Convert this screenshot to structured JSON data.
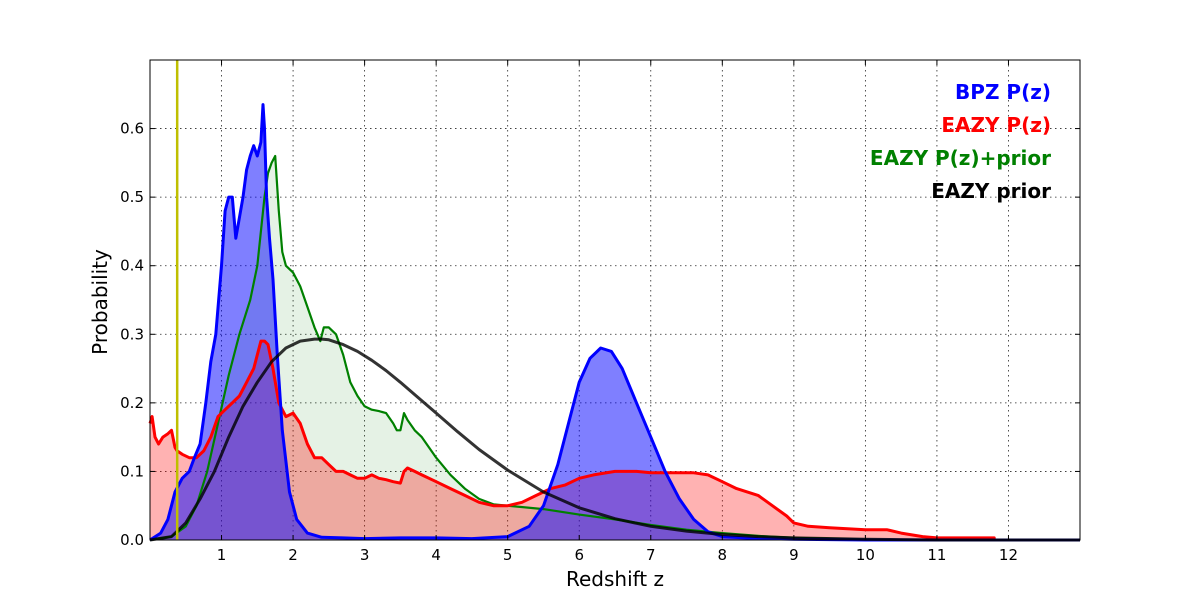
{
  "chart_data": {
    "type": "area",
    "xlabel": "Redshift z",
    "ylabel": "Probability",
    "xlim": [
      0,
      13
    ],
    "ylim": [
      0,
      0.7
    ],
    "xticks": [
      1,
      2,
      3,
      4,
      5,
      6,
      7,
      8,
      9,
      10,
      11,
      12
    ],
    "yticks": [
      0.0,
      0.1,
      0.2,
      0.3,
      0.4,
      0.5,
      0.6
    ],
    "ytick_labels": [
      "0.0",
      "0.1",
      "0.2",
      "0.3",
      "0.4",
      "0.5",
      "0.6"
    ],
    "grid": true,
    "legend_position": "top-right",
    "vline": {
      "x": 0.38,
      "color": "#bfbf00"
    },
    "series": [
      {
        "name": "BPZ P(z)",
        "color": "#0000ff",
        "fill": "#0000ff",
        "fill_opacity": 0.5,
        "x": [
          0,
          0.15,
          0.25,
          0.35,
          0.45,
          0.55,
          0.62,
          0.7,
          0.78,
          0.85,
          0.92,
          1.0,
          1.05,
          1.1,
          1.15,
          1.2,
          1.25,
          1.3,
          1.35,
          1.4,
          1.45,
          1.5,
          1.55,
          1.58,
          1.6,
          1.63,
          1.67,
          1.72,
          1.78,
          1.85,
          1.95,
          2.05,
          2.2,
          2.4,
          2.7,
          3.0,
          3.5,
          4.0,
          4.5,
          5.0,
          5.3,
          5.5,
          5.7,
          5.85,
          6.0,
          6.15,
          6.3,
          6.45,
          6.6,
          6.8,
          7.0,
          7.2,
          7.4,
          7.6,
          7.8,
          8.0,
          8.5,
          9.0,
          10.0,
          13.0
        ],
        "y": [
          0.0,
          0.01,
          0.03,
          0.07,
          0.09,
          0.1,
          0.12,
          0.14,
          0.2,
          0.26,
          0.3,
          0.4,
          0.48,
          0.5,
          0.5,
          0.44,
          0.47,
          0.5,
          0.54,
          0.56,
          0.575,
          0.56,
          0.58,
          0.635,
          0.6,
          0.5,
          0.44,
          0.38,
          0.27,
          0.16,
          0.07,
          0.03,
          0.01,
          0.004,
          0.003,
          0.002,
          0.003,
          0.003,
          0.002,
          0.005,
          0.02,
          0.05,
          0.11,
          0.17,
          0.23,
          0.265,
          0.28,
          0.275,
          0.25,
          0.2,
          0.15,
          0.1,
          0.06,
          0.03,
          0.012,
          0.005,
          0.002,
          0.001,
          0.0,
          0.0
        ]
      },
      {
        "name": "EAZY P(z)",
        "color": "#ff0000",
        "fill": "#ff0000",
        "fill_opacity": 0.3,
        "x": [
          0,
          0.03,
          0.07,
          0.12,
          0.18,
          0.25,
          0.3,
          0.35,
          0.38,
          0.45,
          0.55,
          0.65,
          0.75,
          0.85,
          0.95,
          1.05,
          1.15,
          1.25,
          1.35,
          1.45,
          1.55,
          1.6,
          1.65,
          1.72,
          1.8,
          1.9,
          2.0,
          2.1,
          2.2,
          2.3,
          2.4,
          2.5,
          2.6,
          2.7,
          2.8,
          2.9,
          3.0,
          3.1,
          3.2,
          3.3,
          3.4,
          3.5,
          3.55,
          3.6,
          3.7,
          3.8,
          4.0,
          4.2,
          4.4,
          4.6,
          4.8,
          5.0,
          5.2,
          5.4,
          5.6,
          5.8,
          6.0,
          6.2,
          6.5,
          6.8,
          7.0,
          7.3,
          7.6,
          7.8,
          8.0,
          8.2,
          8.5,
          8.7,
          8.9,
          9.0,
          9.2,
          9.5,
          10.0,
          10.3,
          10.5,
          10.8,
          11.0,
          11.5,
          11.8,
          11.8
        ],
        "y": [
          0.17,
          0.18,
          0.15,
          0.14,
          0.15,
          0.155,
          0.16,
          0.135,
          0.13,
          0.125,
          0.12,
          0.12,
          0.13,
          0.15,
          0.18,
          0.19,
          0.2,
          0.21,
          0.23,
          0.25,
          0.29,
          0.29,
          0.285,
          0.25,
          0.2,
          0.18,
          0.185,
          0.17,
          0.14,
          0.12,
          0.12,
          0.11,
          0.1,
          0.1,
          0.095,
          0.09,
          0.09,
          0.095,
          0.09,
          0.088,
          0.085,
          0.083,
          0.1,
          0.105,
          0.1,
          0.095,
          0.085,
          0.075,
          0.065,
          0.055,
          0.05,
          0.05,
          0.055,
          0.065,
          0.075,
          0.08,
          0.09,
          0.095,
          0.1,
          0.1,
          0.098,
          0.098,
          0.098,
          0.095,
          0.085,
          0.075,
          0.065,
          0.05,
          0.035,
          0.025,
          0.02,
          0.018,
          0.015,
          0.015,
          0.01,
          0.005,
          0.003,
          0.003,
          0.003,
          0.0
        ]
      },
      {
        "name": "EAZY P(z)+prior",
        "color": "#008000",
        "fill": "#008000",
        "fill_opacity": 0.1,
        "x": [
          0,
          0.3,
          0.5,
          0.65,
          0.8,
          0.95,
          1.1,
          1.25,
          1.4,
          1.5,
          1.55,
          1.6,
          1.65,
          1.7,
          1.75,
          1.8,
          1.85,
          1.9,
          2.0,
          2.1,
          2.2,
          2.3,
          2.38,
          2.43,
          2.5,
          2.6,
          2.7,
          2.8,
          2.9,
          3.0,
          3.1,
          3.2,
          3.3,
          3.4,
          3.45,
          3.5,
          3.55,
          3.6,
          3.7,
          3.8,
          4.0,
          4.2,
          4.4,
          4.6,
          4.8,
          5.0,
          5.5,
          6.0,
          6.5,
          7.0,
          7.5,
          8.0,
          8.5,
          9.0,
          10.0,
          11.0,
          13.0
        ],
        "y": [
          0.0,
          0.005,
          0.02,
          0.05,
          0.1,
          0.17,
          0.24,
          0.3,
          0.35,
          0.4,
          0.45,
          0.5,
          0.535,
          0.55,
          0.56,
          0.48,
          0.42,
          0.4,
          0.39,
          0.37,
          0.34,
          0.31,
          0.29,
          0.31,
          0.31,
          0.3,
          0.27,
          0.23,
          0.21,
          0.195,
          0.19,
          0.188,
          0.185,
          0.17,
          0.16,
          0.16,
          0.185,
          0.175,
          0.16,
          0.15,
          0.12,
          0.095,
          0.075,
          0.06,
          0.052,
          0.05,
          0.045,
          0.037,
          0.03,
          0.022,
          0.015,
          0.01,
          0.006,
          0.003,
          0.001,
          0.0,
          0.0
        ]
      },
      {
        "name": "EAZY prior",
        "color": "#000000",
        "opacity": 0.8,
        "x": [
          0,
          0.3,
          0.5,
          0.7,
          0.9,
          1.1,
          1.3,
          1.5,
          1.7,
          1.9,
          2.1,
          2.3,
          2.4,
          2.5,
          2.7,
          2.9,
          3.1,
          3.3,
          3.5,
          3.7,
          4.0,
          4.3,
          4.6,
          5.0,
          5.5,
          6.0,
          6.5,
          7.0,
          7.5,
          8.0,
          8.5,
          9.0,
          10.0,
          11.0,
          13.0
        ],
        "y": [
          0.0,
          0.005,
          0.025,
          0.06,
          0.1,
          0.15,
          0.195,
          0.23,
          0.26,
          0.28,
          0.29,
          0.293,
          0.293,
          0.292,
          0.285,
          0.275,
          0.262,
          0.247,
          0.23,
          0.212,
          0.185,
          0.158,
          0.132,
          0.102,
          0.07,
          0.047,
          0.031,
          0.02,
          0.013,
          0.008,
          0.005,
          0.003,
          0.001,
          0.0,
          0.0
        ]
      }
    ]
  }
}
